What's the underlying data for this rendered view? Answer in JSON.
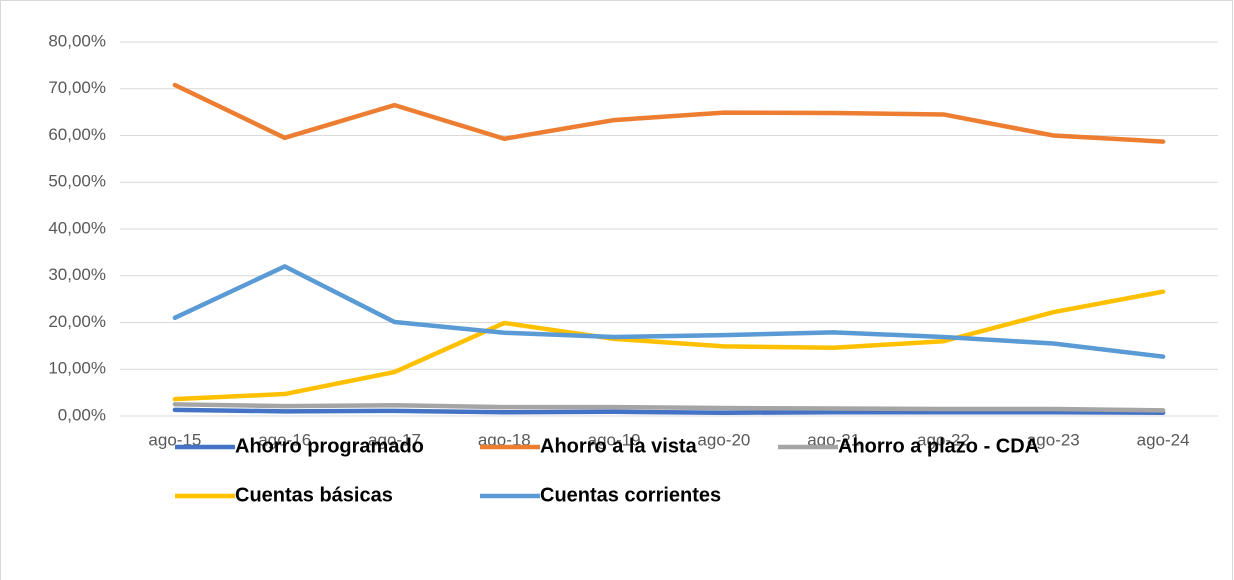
{
  "chart_data": {
    "type": "line",
    "categories": [
      "ago-15",
      "ago-16",
      "ago-17",
      "ago-18",
      "ago-19",
      "ago-20",
      "ago-21",
      "ago-22",
      "ago-23",
      "ago-24"
    ],
    "series": [
      {
        "name": "Ahorro programado",
        "color": "#4472c4",
        "values": [
          1.3,
          1.0,
          1.1,
          0.8,
          0.9,
          0.7,
          0.8,
          0.8,
          0.8,
          0.7
        ]
      },
      {
        "name": "Ahorro a la vista",
        "color": "#ed7d31",
        "values": [
          70.8,
          59.5,
          66.5,
          59.3,
          63.3,
          64.9,
          64.8,
          64.5,
          60.0,
          58.7
        ]
      },
      {
        "name": "Ahorro a plazo - CDA",
        "color": "#a5a5a5",
        "values": [
          2.5,
          2.1,
          2.3,
          1.9,
          1.9,
          1.7,
          1.6,
          1.5,
          1.5,
          1.2
        ]
      },
      {
        "name": "Cuentas básicas",
        "color": "#ffc000",
        "values": [
          3.6,
          4.7,
          9.4,
          19.9,
          16.5,
          14.9,
          14.6,
          16.0,
          22.2,
          26.6
        ]
      },
      {
        "name": "Cuentas corrientes",
        "color": "#5b9bd5",
        "values": [
          21.0,
          32.0,
          20.1,
          17.8,
          16.9,
          17.3,
          17.9,
          16.9,
          15.5,
          12.7
        ]
      }
    ],
    "ylim": [
      0,
      80
    ],
    "yticks": [
      {
        "value": 0,
        "label": "0,00%"
      },
      {
        "value": 10,
        "label": "10,00%"
      },
      {
        "value": 20,
        "label": "20,00%"
      },
      {
        "value": 30,
        "label": "30,00%"
      },
      {
        "value": 40,
        "label": "40,00%"
      },
      {
        "value": 50,
        "label": "50,00%"
      },
      {
        "value": 60,
        "label": "60,00%"
      },
      {
        "value": 70,
        "label": "70,00%"
      },
      {
        "value": 80,
        "label": "80,00%"
      }
    ],
    "grid": true,
    "legend": "bottom"
  }
}
